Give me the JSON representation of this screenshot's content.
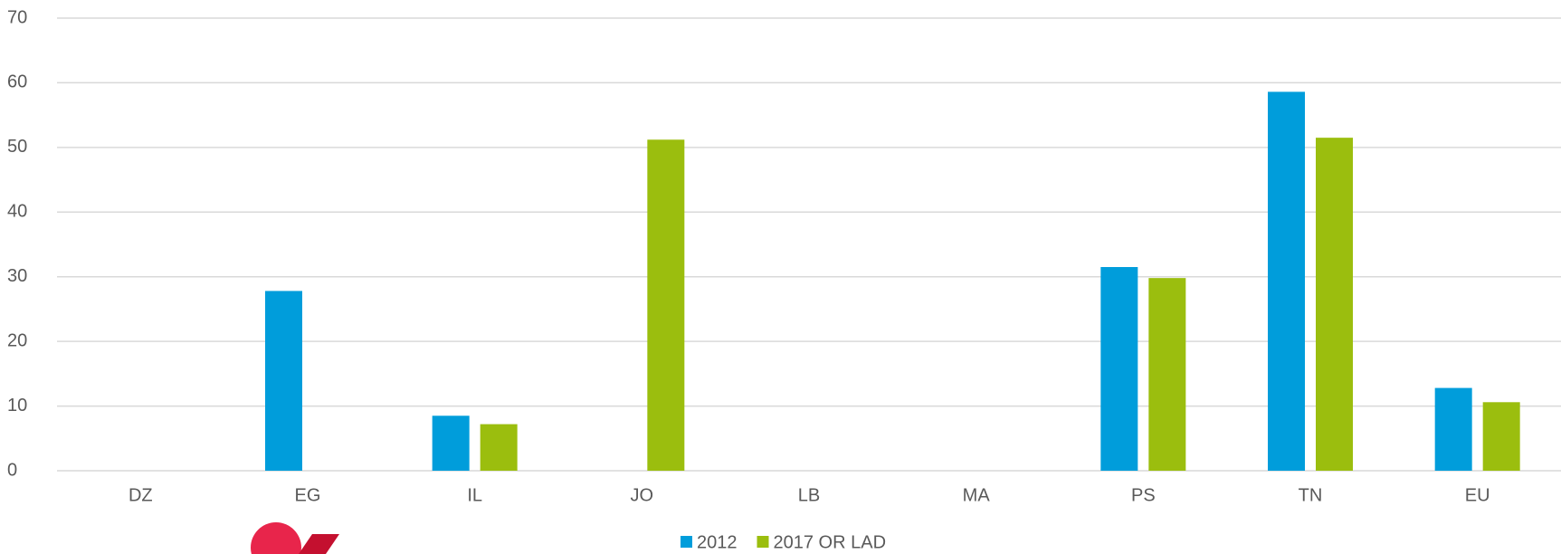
{
  "chart_data": {
    "type": "bar",
    "categories": [
      "DZ",
      "EG",
      "IL",
      "JO",
      "LB",
      "MA",
      "PS",
      "TN",
      "EU"
    ],
    "series": [
      {
        "name": "2012",
        "color": "#009ddb",
        "values": [
          null,
          27.8,
          8.5,
          null,
          null,
          null,
          31.5,
          58.6,
          12.8
        ]
      },
      {
        "name": "2017 OR LAD",
        "color": "#9bbe0e",
        "values": [
          null,
          null,
          7.2,
          51.2,
          null,
          null,
          29.8,
          51.5,
          10.6
        ]
      }
    ],
    "ylim": [
      0,
      70
    ],
    "yticks": [
      0,
      10,
      20,
      30,
      40,
      50,
      60,
      70
    ],
    "grid": true,
    "legend": "bottom"
  }
}
